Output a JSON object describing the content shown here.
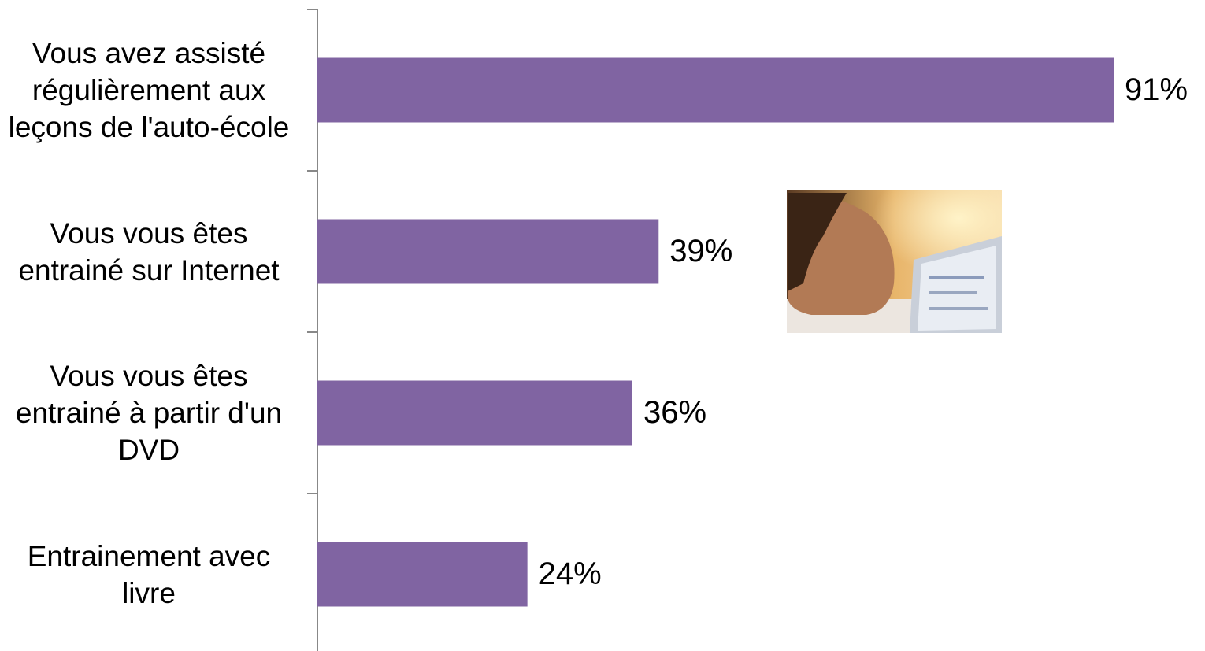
{
  "chart_data": {
    "type": "bar",
    "orientation": "horizontal",
    "categories": [
      "Vous avez assisté régulièrement aux leçons de l'auto-école",
      "Vous vous êtes entrainé sur Internet",
      "Vous vous êtes entrainé à partir d'un DVD",
      "Entrainement avec livre"
    ],
    "values": [
      91,
      39,
      36,
      24
    ],
    "value_labels": [
      "91%",
      "39%",
      "36%",
      "24%"
    ],
    "color": "#8064a2"
  }
}
